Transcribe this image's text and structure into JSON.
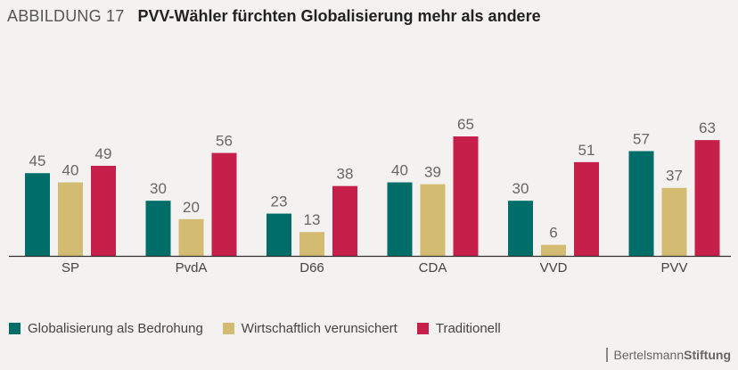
{
  "header": {
    "figure_label": "ABBILDUNG 17",
    "title": "PVV-Wähler fürchten Globalisierung mehr als andere"
  },
  "brand": {
    "name_part1": "Bertelsmann",
    "name_part2": "Stiftung"
  },
  "colors": {
    "globalisierung": "#006d68",
    "wirtschaftlich": "#d3bc72",
    "traditionell": "#c51f4a"
  },
  "chart_data": {
    "type": "bar",
    "title": "PVV-Wähler fürchten Globalisierung mehr als andere",
    "categories": [
      "SP",
      "PvdA",
      "D66",
      "CDA",
      "VVD",
      "PVV"
    ],
    "series": [
      {
        "name": "Globalisierung als Bedrohung",
        "color": "#006d68",
        "values": [
          45,
          30,
          23,
          40,
          30,
          57
        ]
      },
      {
        "name": "Wirtschaftlich verunsichert",
        "color": "#d3bc72",
        "values": [
          40,
          20,
          13,
          39,
          6,
          37
        ]
      },
      {
        "name": "Traditionell",
        "color": "#c51f4a",
        "values": [
          49,
          56,
          38,
          65,
          51,
          63
        ]
      }
    ],
    "ylim": [
      0,
      65
    ],
    "xlabel": "",
    "ylabel": "",
    "grid": false,
    "legend": "bottom-left"
  }
}
